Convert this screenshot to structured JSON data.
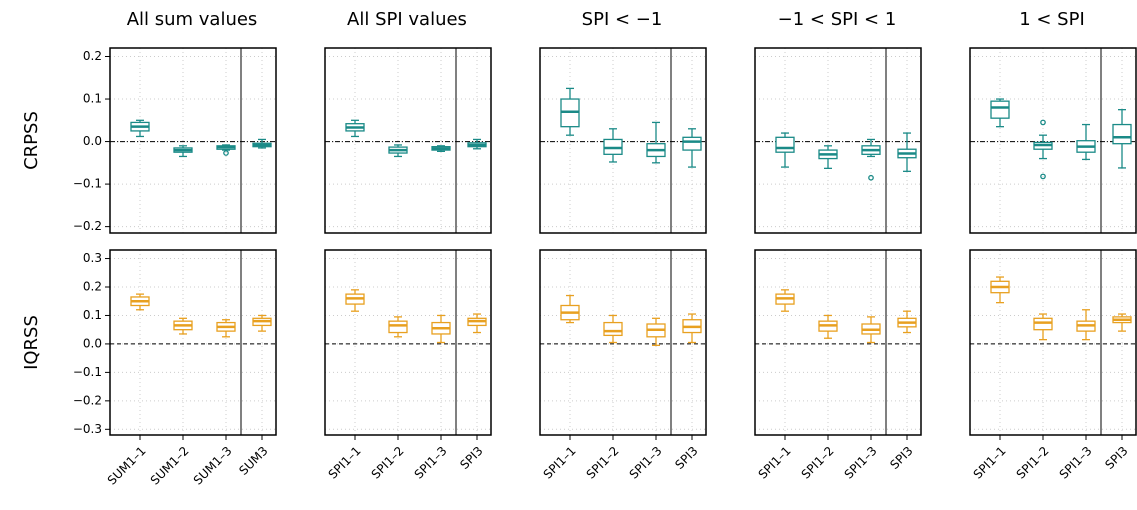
{
  "chart_data": {
    "type": "box",
    "column_titles": [
      "All sum values",
      "All SPI values",
      "SPI < −1",
      "−1 < SPI < 1",
      "1 < SPI"
    ],
    "categories": [
      [
        "SUM1–1",
        "SUM1–2",
        "SUM1–3",
        "SUM3"
      ],
      [
        "SPI1–1",
        "SPI1–2",
        "SPI1–3",
        "SPI3"
      ],
      [
        "SPI1–1",
        "SPI1–2",
        "SPI1–3",
        "SPI3"
      ],
      [
        "SPI1–1",
        "SPI1–2",
        "SPI1–3",
        "SPI3"
      ],
      [
        "SPI1–1",
        "SPI1–2",
        "SPI1–3",
        "SPI3"
      ]
    ],
    "grid": true,
    "rows": [
      {
        "label": "CRPSS",
        "color": "#1a8a87",
        "zero_line": "dashdot",
        "ylim": [
          -0.215,
          0.22
        ],
        "yticks": [
          {
            "value": -0.2,
            "label": "−0.2"
          },
          {
            "value": -0.1,
            "label": "−0.1"
          },
          {
            "value": 0,
            "label": "0.0"
          },
          0.1,
          0.2
        ],
        "panels": [
          [
            {
              "low": 0.012,
              "q1": 0.025,
              "median": 0.035,
              "q3": 0.045,
              "high": 0.05
            },
            {
              "low": -0.035,
              "q1": -0.025,
              "median": -0.02,
              "q3": -0.015,
              "high": -0.01
            },
            {
              "low": -0.02,
              "q1": -0.018,
              "median": -0.013,
              "q3": -0.01,
              "high": -0.008,
              "outliers": [
                -0.027
              ]
            },
            {
              "low": -0.015,
              "q1": -0.012,
              "median": -0.008,
              "q3": -0.004,
              "high": 0.005
            }
          ],
          [
            {
              "low": 0.012,
              "q1": 0.025,
              "median": 0.033,
              "q3": 0.042,
              "high": 0.05
            },
            {
              "low": -0.035,
              "q1": -0.027,
              "median": -0.02,
              "q3": -0.013,
              "high": -0.008
            },
            {
              "low": -0.023,
              "q1": -0.02,
              "median": -0.016,
              "q3": -0.012,
              "high": -0.01
            },
            {
              "low": -0.017,
              "q1": -0.012,
              "median": -0.008,
              "q3": -0.003,
              "high": 0.005
            }
          ],
          [
            {
              "low": 0.015,
              "q1": 0.035,
              "median": 0.07,
              "q3": 0.1,
              "high": 0.125
            },
            {
              "low": -0.048,
              "q1": -0.03,
              "median": -0.015,
              "q3": 0.005,
              "high": 0.03
            },
            {
              "low": -0.05,
              "q1": -0.035,
              "median": -0.02,
              "q3": -0.005,
              "high": 0.045
            },
            {
              "low": -0.06,
              "q1": -0.02,
              "median": 0,
              "q3": 0.01,
              "high": 0.03
            }
          ],
          [
            {
              "low": -0.06,
              "q1": -0.025,
              "median": -0.015,
              "q3": 0.01,
              "high": 0.02
            },
            {
              "low": -0.063,
              "q1": -0.04,
              "median": -0.03,
              "q3": -0.02,
              "high": -0.01
            },
            {
              "low": -0.035,
              "q1": -0.03,
              "median": -0.02,
              "q3": -0.01,
              "high": 0.005,
              "outliers": [
                -0.085
              ]
            },
            {
              "low": -0.07,
              "q1": -0.038,
              "median": -0.028,
              "q3": -0.018,
              "high": 0.02
            }
          ],
          [
            {
              "low": 0.035,
              "q1": 0.055,
              "median": 0.08,
              "q3": 0.095,
              "high": 0.1
            },
            {
              "low": -0.04,
              "q1": -0.018,
              "median": -0.008,
              "q3": -0.002,
              "high": 0.015,
              "outliers": [
                0.045,
                -0.082
              ]
            },
            {
              "low": -0.042,
              "q1": -0.025,
              "median": -0.012,
              "q3": 0.002,
              "high": 0.04
            },
            {
              "low": -0.062,
              "q1": -0.005,
              "median": 0.01,
              "q3": 0.04,
              "high": 0.075
            }
          ]
        ]
      },
      {
        "label": "IQRSS",
        "color": "#e8a020",
        "zero_line": "dashed",
        "ylim": [
          -0.32,
          0.33
        ],
        "yticks": [
          {
            "value": -0.3,
            "label": "−0.3"
          },
          {
            "value": -0.2,
            "label": "−0.2"
          },
          {
            "value": -0.1,
            "label": "−0.1"
          },
          {
            "value": 0,
            "label": "0.0"
          },
          0.1,
          0.2,
          0.3
        ],
        "panels": [
          [
            {
              "low": 0.12,
              "q1": 0.135,
              "median": 0.15,
              "q3": 0.165,
              "high": 0.175
            },
            {
              "low": 0.035,
              "q1": 0.05,
              "median": 0.065,
              "q3": 0.08,
              "high": 0.09
            },
            {
              "low": 0.025,
              "q1": 0.045,
              "median": 0.06,
              "q3": 0.075,
              "high": 0.085
            },
            {
              "low": 0.045,
              "q1": 0.065,
              "median": 0.08,
              "q3": 0.09,
              "high": 0.1
            }
          ],
          [
            {
              "low": 0.115,
              "q1": 0.14,
              "median": 0.16,
              "q3": 0.175,
              "high": 0.19
            },
            {
              "low": 0.025,
              "q1": 0.04,
              "median": 0.065,
              "q3": 0.08,
              "high": 0.095
            },
            {
              "low": 0.005,
              "q1": 0.035,
              "median": 0.055,
              "q3": 0.075,
              "high": 0.1
            },
            {
              "low": 0.04,
              "q1": 0.065,
              "median": 0.08,
              "q3": 0.09,
              "high": 0.105
            }
          ],
          [
            {
              "low": 0.075,
              "q1": 0.085,
              "median": 0.11,
              "q3": 0.135,
              "high": 0.17
            },
            {
              "low": 0.005,
              "q1": 0.03,
              "median": 0.045,
              "q3": 0.075,
              "high": 0.1
            },
            {
              "low": -0.005,
              "q1": 0.025,
              "median": 0.05,
              "q3": 0.07,
              "high": 0.09
            },
            {
              "low": 0.005,
              "q1": 0.04,
              "median": 0.06,
              "q3": 0.085,
              "high": 0.105
            }
          ],
          [
            {
              "low": 0.115,
              "q1": 0.14,
              "median": 0.16,
              "q3": 0.175,
              "high": 0.19
            },
            {
              "low": 0.02,
              "q1": 0.045,
              "median": 0.065,
              "q3": 0.08,
              "high": 0.1
            },
            {
              "low": 0.005,
              "q1": 0.035,
              "median": 0.05,
              "q3": 0.07,
              "high": 0.095
            },
            {
              "low": 0.04,
              "q1": 0.06,
              "median": 0.075,
              "q3": 0.09,
              "high": 0.115
            }
          ],
          [
            {
              "low": 0.145,
              "q1": 0.18,
              "median": 0.2,
              "q3": 0.22,
              "high": 0.235
            },
            {
              "low": 0.015,
              "q1": 0.05,
              "median": 0.075,
              "q3": 0.09,
              "high": 0.105
            },
            {
              "low": 0.015,
              "q1": 0.045,
              "median": 0.065,
              "q3": 0.08,
              "high": 0.12
            },
            {
              "low": 0.045,
              "q1": 0.075,
              "median": 0.085,
              "q3": 0.095,
              "high": 0.105
            }
          ]
        ]
      }
    ]
  }
}
